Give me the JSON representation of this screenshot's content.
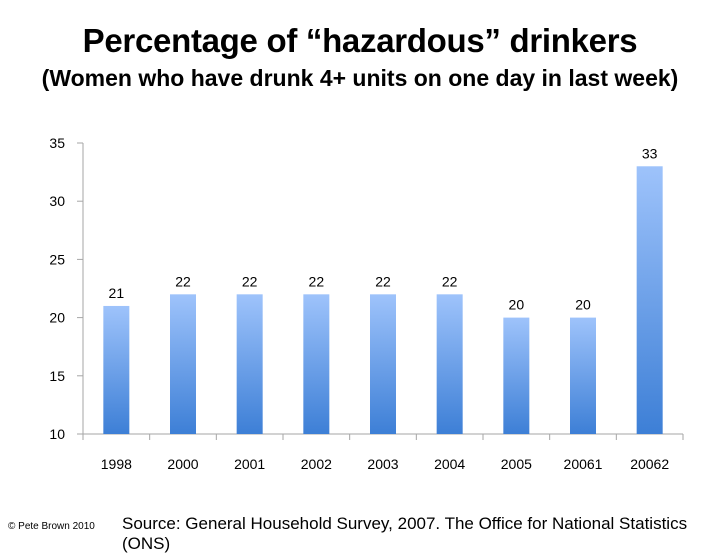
{
  "title": "Percentage of “hazardous” drinkers",
  "subtitle": "(Women who have drunk 4+ units on one day in last week)",
  "copyright": "© Pete Brown 2010",
  "source": "Source: General Household Survey, 2007. The Office for National Statistics (ONS)",
  "chart_data": {
    "type": "bar",
    "title": "Percentage of “hazardous” drinkers",
    "subtitle": "(Women who have drunk 4+ units on one day in last week)",
    "categories": [
      "1998",
      "2000",
      "2001",
      "2002",
      "2003",
      "2004",
      "2005",
      "20061",
      "20062"
    ],
    "values": [
      21,
      22,
      22,
      22,
      22,
      22,
      20,
      20,
      33
    ],
    "ylim": [
      10,
      35
    ],
    "yticks": [
      10,
      15,
      20,
      25,
      30,
      35
    ],
    "xlabel": "",
    "ylabel": "",
    "grid": false,
    "legend": "none",
    "bar_color_top": "#9ec3fb",
    "bar_color_bottom": "#3d7fd6",
    "axis_color": "#a6a6a6"
  }
}
